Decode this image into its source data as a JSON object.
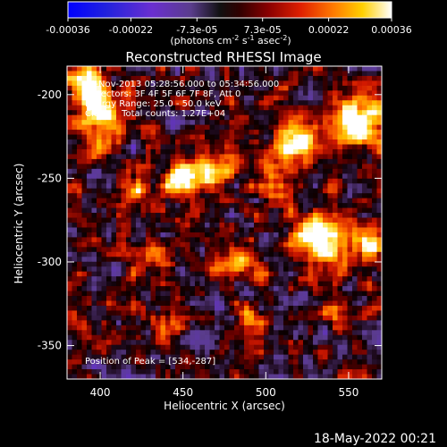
{
  "chart_data": {
    "type": "heatmap",
    "title": "Reconstructed RHESSI Image",
    "xlabel": "Heliocentric X (arcsec)",
    "ylabel": "Heliocentric Y (arcsec)",
    "xlim": [
      380,
      570
    ],
    "ylim": [
      -370,
      -183
    ],
    "x_ticks": [
      400,
      450,
      500,
      550
    ],
    "y_ticks": [
      -200,
      -250,
      -300,
      -350
    ],
    "colorbar": {
      "range": [
        -0.00036,
        0.00036
      ],
      "tick_values": [
        -0.00036,
        -0.00022,
        -7.3e-05,
        7.3e-05,
        0.00022,
        0.00036
      ],
      "tick_labels": [
        "-0.00036",
        "-0.00022",
        "-7.3e-05",
        "7.3e-05",
        "0.00022",
        "0.00036"
      ],
      "unit_text": [
        "(photons cm",
        "-2",
        " s",
        "-1",
        " asec",
        "-2",
        ")"
      ]
    },
    "annotations": [
      "4-Nov-2013 05:28:56.000 to 05:34:56.000",
      "Detectors: 3F 4F 5F 6F 7F 8F, Att 0",
      "Energy Range: 25.0 - 50.0 keV",
      "Clean    Total counts: 1.27E+04"
    ],
    "peak_text": "Position of Peak = [534,-287]",
    "peak": {
      "x": 534,
      "y": -287
    },
    "grid": false
  },
  "footer": {
    "date": "18-May-2022 00:21"
  },
  "colors": {
    "background": "#000000",
    "text": "#ffffff"
  }
}
